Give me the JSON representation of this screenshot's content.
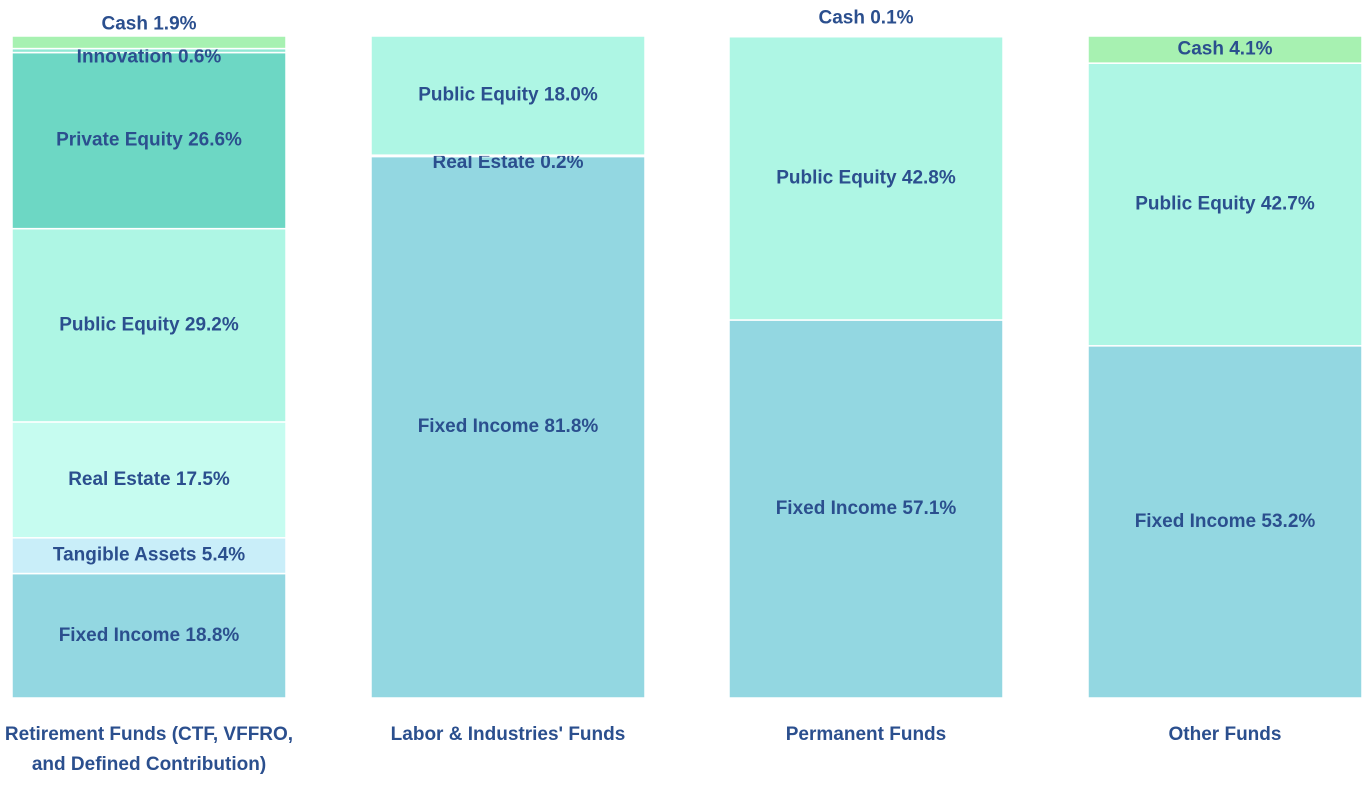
{
  "chart_data": {
    "type": "stacked_bar",
    "categories": [
      "Retirement Funds (CTF, VFFRO, and Defined Contribution)",
      "Labor & Industries' Funds",
      "Permanent Funds",
      "Other Funds"
    ],
    "ylim": [
      0,
      100
    ],
    "series": [
      {
        "name": "Fixed Income",
        "color": "#93d7e1",
        "values": [
          18.8,
          81.8,
          57.1,
          53.2
        ],
        "value_labels": [
          "18.8%",
          "81.8%",
          "57.1%",
          "53.2%"
        ]
      },
      {
        "name": "Tangible Assets",
        "color": "#c9eef9",
        "values": [
          5.4,
          null,
          null,
          null
        ],
        "value_labels": [
          "5.4%",
          null,
          null,
          null
        ]
      },
      {
        "name": "Real Estate",
        "color": "#c6fcf0",
        "values": [
          17.5,
          0.2,
          null,
          null
        ],
        "value_labels": [
          "17.5%",
          "0.2%",
          null,
          null
        ]
      },
      {
        "name": "Public Equity",
        "color": "#aef6e4",
        "values": [
          29.2,
          18.0,
          42.8,
          42.7
        ],
        "value_labels": [
          "29.2%",
          "18.0%",
          "42.8%",
          "42.7%"
        ]
      },
      {
        "name": "Private Equity",
        "color": "#6dd7c4",
        "values": [
          26.6,
          null,
          null,
          null
        ],
        "value_labels": [
          "26.6%",
          null,
          null,
          null
        ]
      },
      {
        "name": "Innovation",
        "color": "#8fe8d4",
        "values": [
          0.6,
          null,
          null,
          null
        ],
        "value_labels": [
          "0.6%",
          null,
          null,
          null
        ]
      },
      {
        "name": "Cash",
        "color": "#a7f1b1",
        "values": [
          1.9,
          null,
          0.1,
          4.1
        ],
        "value_labels": [
          "1.9%",
          null,
          "0.1%",
          "4.1%"
        ]
      }
    ]
  }
}
